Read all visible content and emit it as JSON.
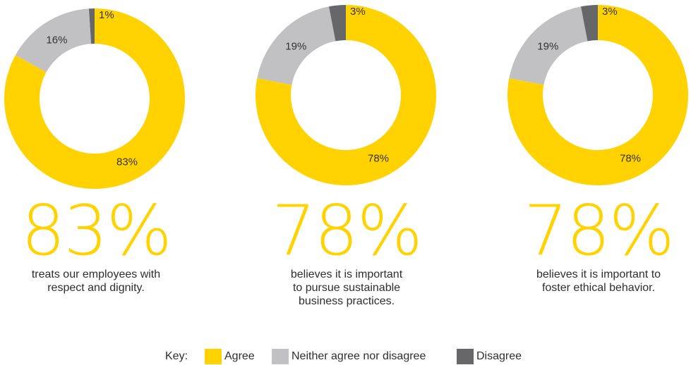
{
  "colors": {
    "agree": "#FFD200",
    "neither": "#C1C1C3",
    "disagree": "#67676A"
  },
  "chart_data": [
    {
      "type": "pie",
      "categories": [
        "Agree",
        "Neither agree nor disagree",
        "Disagree"
      ],
      "values": [
        83,
        16,
        1
      ],
      "labels": [
        "83%",
        "16%",
        "1%"
      ],
      "headline": "83%",
      "caption": [
        "treats our employees with",
        "respect and dignity."
      ]
    },
    {
      "type": "pie",
      "categories": [
        "Agree",
        "Neither agree nor disagree",
        "Disagree"
      ],
      "values": [
        78,
        19,
        3
      ],
      "labels": [
        "78%",
        "19%",
        "3%"
      ],
      "headline": "78%",
      "caption": [
        "believes it is important",
        "to pursue sustainable",
        "business practices."
      ]
    },
    {
      "type": "pie",
      "categories": [
        "Agree",
        "Neither agree nor disagree",
        "Disagree"
      ],
      "values": [
        78,
        19,
        3
      ],
      "labels": [
        "78%",
        "19%",
        "3%"
      ],
      "headline": "78%",
      "caption": [
        "believes it is important to",
        "foster ethical behavior."
      ]
    }
  ],
  "legend": {
    "title": "Key:",
    "items": [
      "Agree",
      "Neither agree nor disagree",
      "Disagree"
    ]
  }
}
